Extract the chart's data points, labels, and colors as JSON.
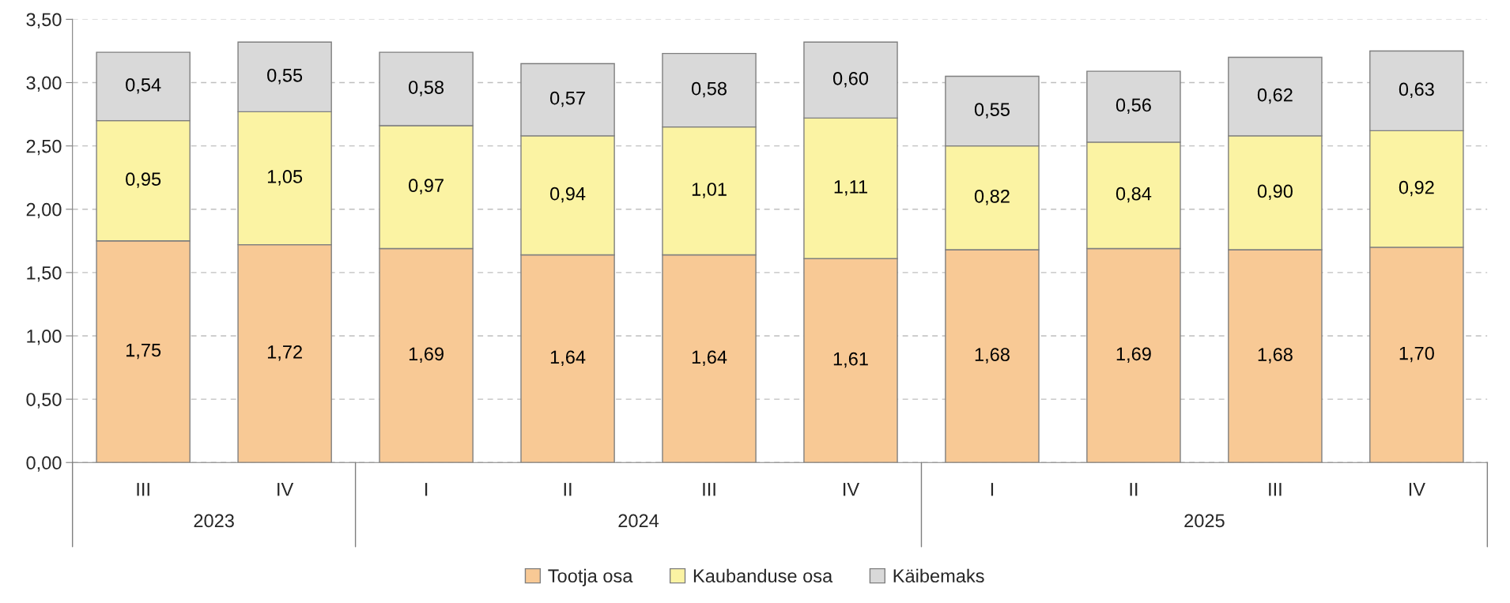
{
  "chart_data": {
    "type": "bar",
    "stacked": true,
    "categories": [
      "III",
      "IV",
      "I",
      "II",
      "III",
      "IV",
      "I",
      "II",
      "III",
      "IV"
    ],
    "annotations": [
      "2023",
      "2024",
      "2025"
    ],
    "series": [
      {
        "name": "Tootja osa",
        "color": "#f8c995",
        "values": [
          1.75,
          1.72,
          1.69,
          1.64,
          1.64,
          1.61,
          1.68,
          1.69,
          1.68,
          1.7
        ],
        "value_labels": [
          "1,75",
          "1,72",
          "1,69",
          "1,64",
          "1,64",
          "1,61",
          "1,68",
          "1,69",
          "1,68",
          "1,70"
        ]
      },
      {
        "name": "Kaubanduse osa",
        "color": "#fbf3a3",
        "values": [
          0.95,
          1.05,
          0.97,
          0.94,
          1.01,
          1.11,
          0.82,
          0.84,
          0.9,
          0.92
        ],
        "value_labels": [
          "0,95",
          "1,05",
          "0,97",
          "0,94",
          "1,01",
          "1,11",
          "0,82",
          "0,84",
          "0,90",
          "0,92"
        ]
      },
      {
        "name": "Käibemaks",
        "color": "#d9d9d9",
        "values": [
          0.54,
          0.55,
          0.58,
          0.57,
          0.58,
          0.6,
          0.55,
          0.56,
          0.62,
          0.63
        ],
        "value_labels": [
          "0,54",
          "0,55",
          "0,58",
          "0,57",
          "0,58",
          "0,60",
          "0,55",
          "0,56",
          "0,62",
          "0,63"
        ]
      }
    ],
    "ylim": [
      0,
      3.5
    ],
    "yticks": [
      {
        "value": 0,
        "label": "0,00"
      },
      {
        "value": 0.5,
        "label": "0,50"
      },
      {
        "value": 1.0,
        "label": "1,00"
      },
      {
        "value": 1.5,
        "label": "1,50"
      },
      {
        "value": 2.0,
        "label": "2,00"
      },
      {
        "value": 2.5,
        "label": "2,50"
      },
      {
        "value": 3.0,
        "label": "3,00"
      },
      {
        "value": 3.5,
        "label": "3,50"
      }
    ],
    "grid": "y",
    "legend": "bottom"
  }
}
